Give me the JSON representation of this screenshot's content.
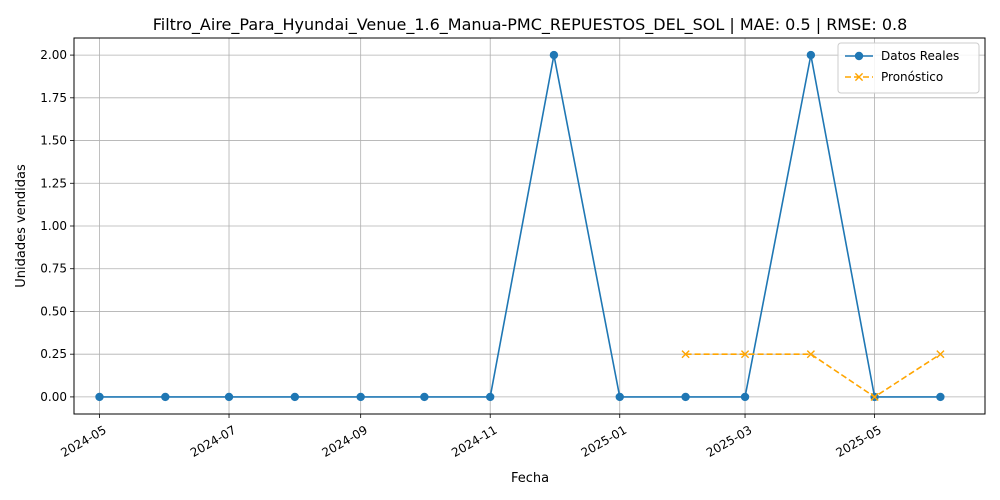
{
  "chart_data": {
    "type": "line",
    "title": "Filtro_Aire_Para_Hyundai_Venue_1.6_Manua-PMC_REPUESTOS_DEL_SOL | MAE: 0.5 | RMSE: 0.8",
    "xlabel": "Fecha",
    "ylabel": "Unidades vendidas",
    "x_ticks": [
      "2024-05",
      "2024-07",
      "2024-09",
      "2024-11",
      "2025-01",
      "2025-03",
      "2025-05"
    ],
    "y_ticks": [
      "0.00",
      "0.25",
      "0.50",
      "0.75",
      "1.00",
      "1.25",
      "1.50",
      "1.75",
      "2.00"
    ],
    "xlim": [
      "2024-04-19",
      "2025-06-22"
    ],
    "ylim": [
      -0.1,
      2.1
    ],
    "grid": true,
    "legend_position": "top-right",
    "series": [
      {
        "name": "Datos Reales",
        "color": "#1f77b4",
        "marker": "circle",
        "line_style": "solid",
        "x": [
          "2024-05-01",
          "2024-06-01",
          "2024-07-01",
          "2024-08-01",
          "2024-09-01",
          "2024-10-01",
          "2024-11-01",
          "2024-12-01",
          "2025-01-01",
          "2025-02-01",
          "2025-03-01",
          "2025-04-01",
          "2025-05-01",
          "2025-06-01"
        ],
        "values": [
          0,
          0,
          0,
          0,
          0,
          0,
          0,
          2,
          0,
          0,
          0,
          2,
          0,
          0
        ]
      },
      {
        "name": "Pronóstico",
        "color": "#ffa500",
        "marker": "x",
        "line_style": "dashed",
        "x": [
          "2025-02-01",
          "2025-03-01",
          "2025-04-01",
          "2025-05-01",
          "2025-06-01"
        ],
        "values": [
          0.25,
          0.25,
          0.25,
          0,
          0.25
        ]
      }
    ]
  }
}
